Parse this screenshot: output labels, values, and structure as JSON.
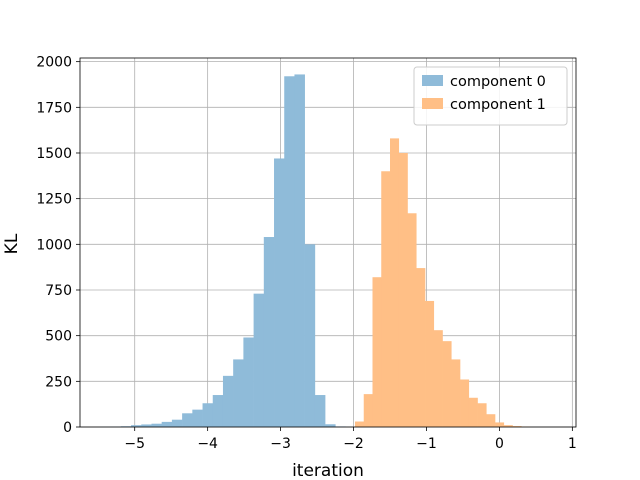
{
  "chart_data": {
    "type": "bar",
    "subtype": "histogram",
    "title": "",
    "xlabel": "iteration",
    "ylabel": "KL",
    "xlim": [
      -5.75,
      1.05
    ],
    "ylim": [
      0,
      2020
    ],
    "xticks": [
      -5,
      -4,
      -3,
      -2,
      -1,
      0,
      1
    ],
    "xtick_labels": [
      "−5",
      "−4",
      "−3",
      "−2",
      "−1",
      "0",
      "1"
    ],
    "yticks": [
      0,
      250,
      500,
      750,
      1000,
      1250,
      1500,
      1750,
      2000
    ],
    "ytick_labels": [
      "0",
      "250",
      "500",
      "750",
      "1000",
      "1250",
      "1500",
      "1750",
      "2000"
    ],
    "grid": true,
    "legend_position": "top-right",
    "series": [
      {
        "name": "component 0",
        "color": "#8fbbd9",
        "bin_edges": [
          -5.47,
          -5.33,
          -5.19,
          -5.05,
          -4.91,
          -4.77,
          -4.63,
          -4.49,
          -4.35,
          -4.21,
          -4.07,
          -3.93,
          -3.79,
          -3.65,
          -3.51,
          -3.37,
          -3.23,
          -3.09,
          -2.95,
          -2.81,
          -2.67,
          -2.53,
          -2.39,
          -2.25,
          -2.11
        ],
        "counts": [
          1,
          2,
          4,
          10,
          14,
          18,
          28,
          40,
          75,
          95,
          130,
          175,
          280,
          370,
          490,
          730,
          1040,
          1470,
          1920,
          1930,
          1000,
          175,
          15,
          3
        ]
      },
      {
        "name": "component 1",
        "color": "#ffbf86",
        "bin_edges": [
          -1.98,
          -1.86,
          -1.74,
          -1.62,
          -1.5,
          -1.38,
          -1.26,
          -1.14,
          -1.02,
          -0.9,
          -0.78,
          -0.66,
          -0.54,
          -0.42,
          -0.3,
          -0.18,
          -0.06,
          0.06,
          0.18,
          0.3,
          0.42
        ],
        "counts": [
          30,
          180,
          820,
          1400,
          1580,
          1500,
          1170,
          870,
          690,
          530,
          470,
          370,
          260,
          160,
          130,
          70,
          25,
          10,
          5,
          2
        ]
      }
    ]
  }
}
